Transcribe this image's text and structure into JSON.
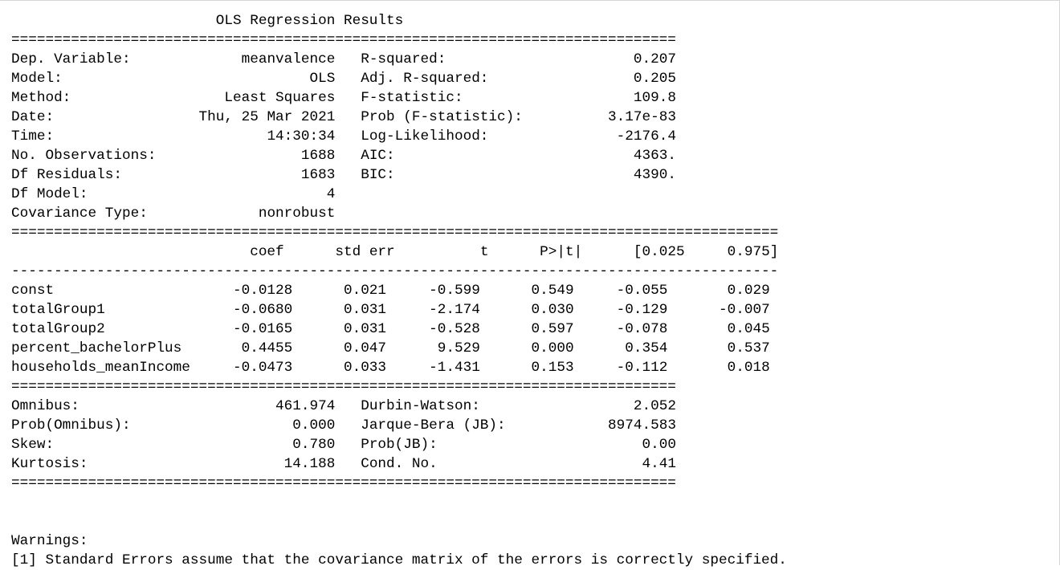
{
  "title": "OLS Regression Results",
  "separators": {
    "double_short": "==============================================================================",
    "double_long": "==========================================================================================",
    "single_long": "------------------------------------------------------------------------------------------"
  },
  "header_rows": [
    {
      "l_label": "Dep. Variable:",
      "l_value": "meanvalence",
      "r_label": "R-squared:",
      "r_value": "0.207"
    },
    {
      "l_label": "Model:",
      "l_value": "OLS",
      "r_label": "Adj. R-squared:",
      "r_value": "0.205"
    },
    {
      "l_label": "Method:",
      "l_value": "Least Squares",
      "r_label": "F-statistic:",
      "r_value": "109.8"
    },
    {
      "l_label": "Date:",
      "l_value": "Thu, 25 Mar 2021",
      "r_label": "Prob (F-statistic):",
      "r_value": "3.17e-83"
    },
    {
      "l_label": "Time:",
      "l_value": "14:30:34",
      "r_label": "Log-Likelihood:",
      "r_value": "-2176.4"
    },
    {
      "l_label": "No. Observations:",
      "l_value": "1688",
      "r_label": "AIC:",
      "r_value": "4363."
    },
    {
      "l_label": "Df Residuals:",
      "l_value": "1683",
      "r_label": "BIC:",
      "r_value": "4390."
    },
    {
      "l_label": "Df Model:",
      "l_value": "4",
      "r_label": "",
      "r_value": ""
    },
    {
      "l_label": "Covariance Type:",
      "l_value": "nonrobust",
      "r_label": "",
      "r_value": ""
    }
  ],
  "coef_columns": [
    "coef",
    "std err",
    "t",
    "P>|t|",
    "[0.025",
    "0.975]"
  ],
  "coef_rows": [
    {
      "name": "const",
      "values": [
        "-0.0128",
        "0.021",
        "-0.599",
        "0.549",
        "-0.055",
        "0.029"
      ]
    },
    {
      "name": "totalGroup1",
      "values": [
        "-0.0680",
        "0.031",
        "-2.174",
        "0.030",
        "-0.129",
        "-0.007"
      ]
    },
    {
      "name": "totalGroup2",
      "values": [
        "-0.0165",
        "0.031",
        "-0.528",
        "0.597",
        "-0.078",
        "0.045"
      ]
    },
    {
      "name": "percent_bachelorPlus",
      "values": [
        "0.4455",
        "0.047",
        "9.529",
        "0.000",
        "0.354",
        "0.537"
      ]
    },
    {
      "name": "households_meanIncome",
      "values": [
        "-0.0473",
        "0.033",
        "-1.431",
        "0.153",
        "-0.112",
        "0.018"
      ]
    }
  ],
  "diagnostic_rows": [
    {
      "l_label": "Omnibus:",
      "l_value": "461.974",
      "r_label": "Durbin-Watson:",
      "r_value": "2.052"
    },
    {
      "l_label": "Prob(Omnibus):",
      "l_value": "0.000",
      "r_label": "Jarque-Bera (JB):",
      "r_value": "8974.583"
    },
    {
      "l_label": "Skew:",
      "l_value": "0.780",
      "r_label": "Prob(JB):",
      "r_value": "0.00"
    },
    {
      "l_label": "Kurtosis:",
      "l_value": "14.188",
      "r_label": "Cond. No.",
      "r_value": "4.41"
    }
  ],
  "warnings_heading": "Warnings:",
  "warnings": [
    "[1] Standard Errors assume that the covariance matrix of the errors is correctly specified."
  ]
}
